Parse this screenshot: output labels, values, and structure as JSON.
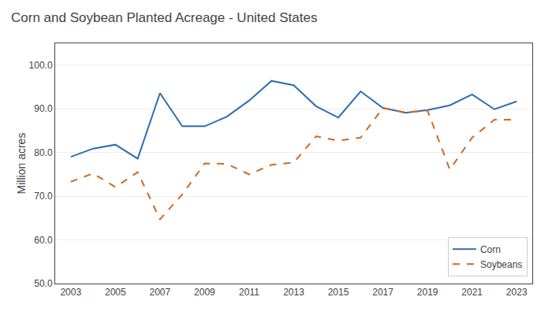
{
  "chart_data": {
    "type": "line",
    "title": "Corn and Soybean Planted Acreage - United States",
    "ylabel": "Million acres",
    "x": [
      2003,
      2004,
      2005,
      2006,
      2007,
      2008,
      2009,
      2010,
      2011,
      2012,
      2013,
      2014,
      2015,
      2016,
      2017,
      2018,
      2019,
      2020,
      2021,
      2022,
      2023
    ],
    "series": [
      {
        "name": "Corn",
        "color": "#2E6DB4",
        "line_style": "solid",
        "values": [
          79.0,
          80.9,
          81.8,
          78.6,
          93.6,
          86.0,
          86.0,
          88.2,
          91.9,
          96.4,
          95.4,
          90.6,
          88.0,
          94.0,
          90.2,
          89.1,
          89.7,
          90.8,
          93.3,
          89.9,
          91.7
        ]
      },
      {
        "name": "Soybeans",
        "color": "#D2691E",
        "line_style": "dashed",
        "values": [
          73.3,
          75.2,
          72.1,
          75.5,
          64.7,
          70.4,
          77.5,
          77.4,
          75.0,
          77.2,
          77.7,
          83.7,
          82.7,
          83.4,
          90.2,
          89.2,
          89.6,
          76.1,
          83.4,
          87.5,
          87.5
        ]
      }
    ],
    "xlim": [
      2002.3,
      2023.7
    ],
    "xticks": [
      2003,
      2005,
      2007,
      2009,
      2011,
      2013,
      2015,
      2017,
      2019,
      2021,
      2023
    ],
    "ylim": [
      50.0,
      105.0
    ],
    "yticks": [
      {
        "value": 50,
        "label": "50.0"
      },
      {
        "value": 60,
        "label": "60.0"
      },
      {
        "value": 70,
        "label": "70.0"
      },
      {
        "value": 80,
        "label": "80.0"
      },
      {
        "value": 90,
        "label": "90.0"
      },
      {
        "value": 100,
        "label": "100.0"
      }
    ],
    "grid": true,
    "legend": "lower right"
  }
}
